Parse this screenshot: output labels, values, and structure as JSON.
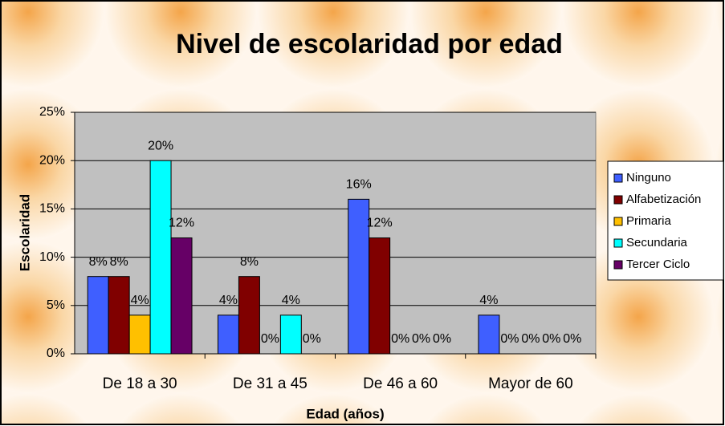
{
  "chart_data": {
    "type": "bar",
    "title": "Nivel de escolaridad por edad",
    "x_label": "Edad (años)",
    "y_label": "Escolaridad",
    "categories": [
      "De 18 a 30",
      "De 31 a 45",
      "De 46 a 60",
      "Mayor de 60"
    ],
    "series": [
      {
        "name": "Ninguno",
        "color": "#3f5fff",
        "values": [
          8,
          4,
          16,
          4
        ],
        "value_labels": [
          "8%",
          "4%",
          "16%",
          "4%"
        ]
      },
      {
        "name": "Alfabetización",
        "color": "#800000",
        "values": [
          8,
          8,
          12,
          0
        ],
        "value_labels": [
          "8%",
          "8%",
          "12%",
          "0%"
        ]
      },
      {
        "name": "Primaria",
        "color": "#ffc000",
        "values": [
          4,
          0,
          0,
          0
        ],
        "value_labels": [
          "4%",
          "0%",
          "0%",
          "0%"
        ]
      },
      {
        "name": "Secundaria",
        "color": "#00ffff",
        "values": [
          20,
          4,
          0,
          0
        ],
        "value_labels": [
          "20%",
          "4%",
          "0%",
          "0%"
        ]
      },
      {
        "name": "Tercer Ciclo",
        "color": "#660066",
        "values": [
          12,
          0,
          0,
          0
        ],
        "value_labels": [
          "12%",
          "0%",
          "0%",
          "0%"
        ]
      }
    ],
    "ylim": [
      0,
      25
    ],
    "yticks": [
      {
        "value": 0,
        "label": "0%"
      },
      {
        "value": 5,
        "label": "5%"
      },
      {
        "value": 10,
        "label": "10%"
      },
      {
        "value": 15,
        "label": "15%"
      },
      {
        "value": 20,
        "label": "20%"
      },
      {
        "value": 25,
        "label": "25%"
      }
    ],
    "grid": true,
    "legend": "right"
  }
}
